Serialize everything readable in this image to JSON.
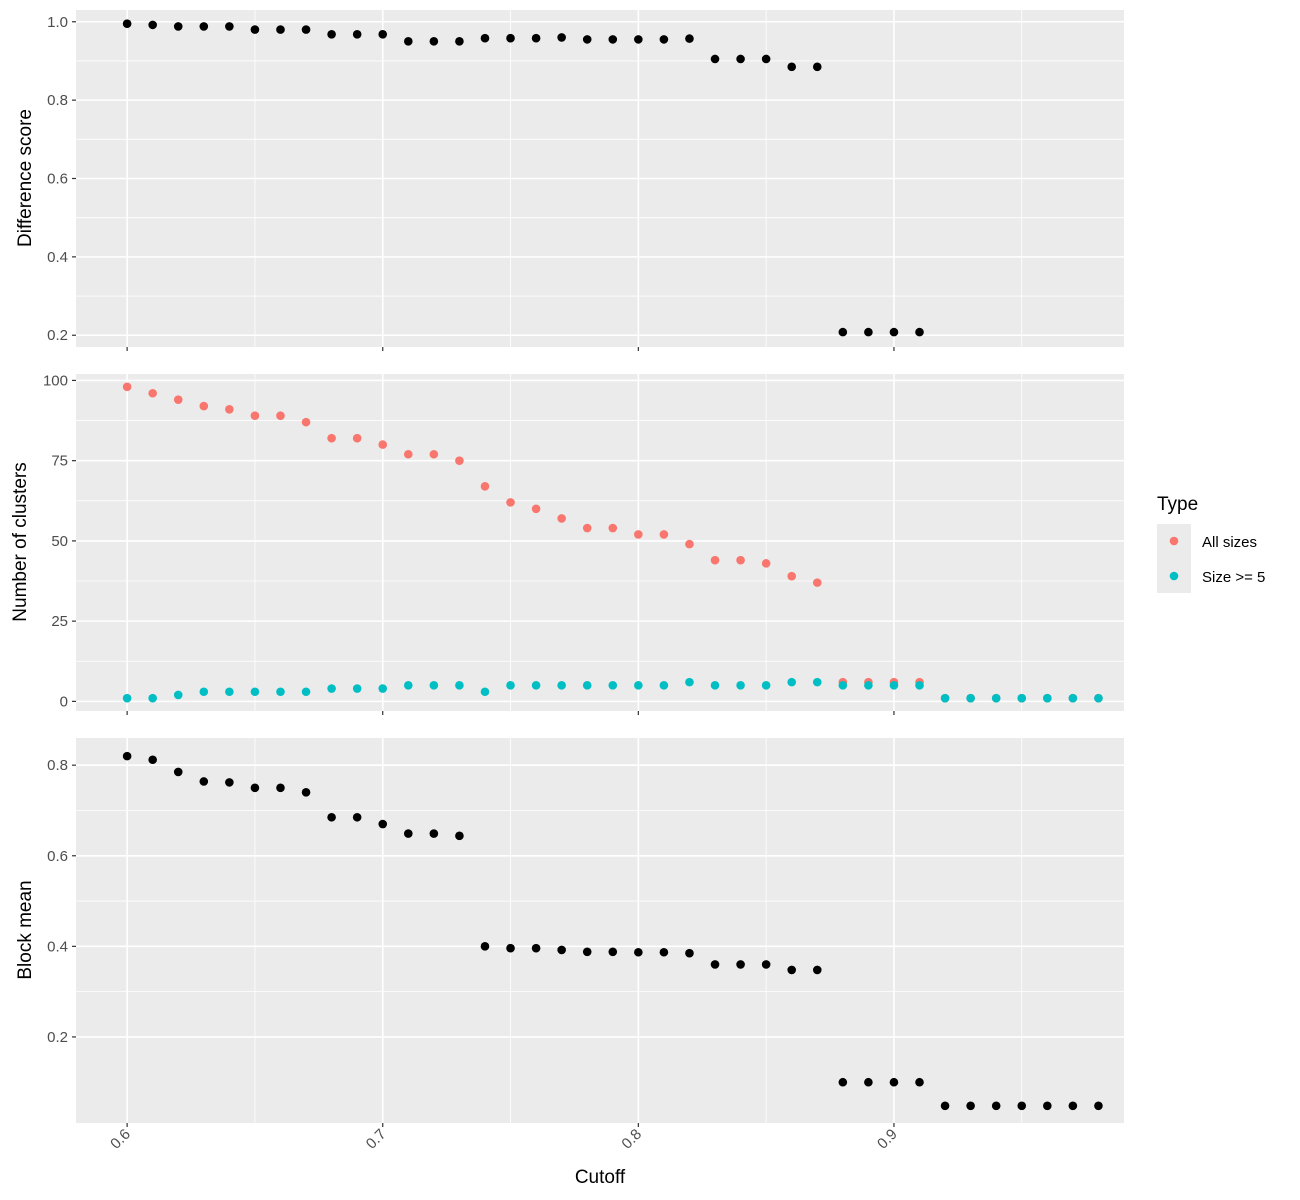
{
  "chart_data": [
    {
      "type": "scatter",
      "panel": "top",
      "ylabel": "Difference score",
      "xlim": [
        0.58,
        0.99
      ],
      "ylim": [
        0.17,
        1.03
      ],
      "y_ticks": [
        0.2,
        0.4,
        0.6,
        0.8,
        1.0
      ],
      "y_tick_labels": [
        "0.2",
        "0.4",
        "0.6",
        "0.8",
        "1.0"
      ],
      "grid": true,
      "series": [
        {
          "color": "#000000",
          "x": [
            0.6,
            0.61,
            0.62,
            0.63,
            0.64,
            0.65,
            0.66,
            0.67,
            0.68,
            0.69,
            0.7,
            0.71,
            0.72,
            0.73,
            0.74,
            0.75,
            0.76,
            0.77,
            0.78,
            0.79,
            0.8,
            0.81,
            0.82,
            0.83,
            0.84,
            0.85,
            0.86,
            0.87,
            0.88,
            0.89,
            0.9,
            0.91
          ],
          "y": [
            0.995,
            0.992,
            0.988,
            0.988,
            0.988,
            0.98,
            0.98,
            0.98,
            0.968,
            0.968,
            0.968,
            0.95,
            0.95,
            0.95,
            0.958,
            0.958,
            0.958,
            0.96,
            0.955,
            0.955,
            0.955,
            0.955,
            0.957,
            0.905,
            0.905,
            0.905,
            0.885,
            0.885,
            0.208,
            0.208,
            0.208,
            0.208
          ]
        }
      ]
    },
    {
      "type": "scatter",
      "panel": "middle",
      "ylabel": "Number of clusters",
      "xlim": [
        0.58,
        0.99
      ],
      "ylim": [
        -3,
        102
      ],
      "y_ticks": [
        0,
        25,
        50,
        75,
        100
      ],
      "y_tick_labels": [
        "0",
        "25",
        "50",
        "75",
        "100"
      ],
      "grid": true,
      "legend": {
        "title": "Type",
        "position": "right"
      },
      "series": [
        {
          "name": "All sizes",
          "color": "#F8766D",
          "x": [
            0.6,
            0.61,
            0.62,
            0.63,
            0.64,
            0.65,
            0.66,
            0.67,
            0.68,
            0.69,
            0.7,
            0.71,
            0.72,
            0.73,
            0.74,
            0.75,
            0.76,
            0.77,
            0.78,
            0.79,
            0.8,
            0.81,
            0.82,
            0.83,
            0.84,
            0.85,
            0.86,
            0.87,
            0.88,
            0.89,
            0.9,
            0.91,
            0.92,
            0.93,
            0.94,
            0.95,
            0.96,
            0.97,
            0.98
          ],
          "y": [
            98,
            96,
            94,
            92,
            91,
            89,
            89,
            87,
            82,
            82,
            80,
            77,
            77,
            75,
            67,
            62,
            60,
            57,
            54,
            54,
            52,
            52,
            49,
            44,
            44,
            43,
            39,
            37,
            6,
            6,
            6,
            6,
            1,
            1,
            1,
            1,
            1,
            1,
            1
          ]
        },
        {
          "name": "Size >= 5",
          "color": "#00BFC4",
          "x": [
            0.6,
            0.61,
            0.62,
            0.63,
            0.64,
            0.65,
            0.66,
            0.67,
            0.68,
            0.69,
            0.7,
            0.71,
            0.72,
            0.73,
            0.74,
            0.75,
            0.76,
            0.77,
            0.78,
            0.79,
            0.8,
            0.81,
            0.82,
            0.83,
            0.84,
            0.85,
            0.86,
            0.87,
            0.88,
            0.89,
            0.9,
            0.91,
            0.92,
            0.93,
            0.94,
            0.95,
            0.96,
            0.97,
            0.98
          ],
          "y": [
            1,
            1,
            2,
            3,
            3,
            3,
            3,
            3,
            4,
            4,
            4,
            5,
            5,
            5,
            3,
            5,
            5,
            5,
            5,
            5,
            5,
            5,
            6,
            5,
            5,
            5,
            6,
            6,
            5,
            5,
            5,
            5,
            1,
            1,
            1,
            1,
            1,
            1,
            1
          ]
        }
      ]
    },
    {
      "type": "scatter",
      "panel": "bottom",
      "ylabel": "Block mean",
      "xlabel": "Cutoff",
      "xlim": [
        0.58,
        0.99
      ],
      "ylim": [
        0.01,
        0.86
      ],
      "x_ticks": [
        0.6,
        0.7,
        0.8,
        0.9
      ],
      "x_tick_labels": [
        "0.6",
        "0.7",
        "0.8",
        "0.9"
      ],
      "y_ticks": [
        0.2,
        0.4,
        0.6,
        0.8
      ],
      "y_tick_labels": [
        "0.2",
        "0.4",
        "0.6",
        "0.8"
      ],
      "grid": true,
      "series": [
        {
          "color": "#000000",
          "x": [
            0.6,
            0.61,
            0.62,
            0.63,
            0.64,
            0.65,
            0.66,
            0.67,
            0.68,
            0.69,
            0.7,
            0.71,
            0.72,
            0.73,
            0.74,
            0.75,
            0.76,
            0.77,
            0.78,
            0.79,
            0.8,
            0.81,
            0.82,
            0.83,
            0.84,
            0.85,
            0.86,
            0.87,
            0.88,
            0.89,
            0.9,
            0.91,
            0.92,
            0.93,
            0.94,
            0.95,
            0.96,
            0.97,
            0.98
          ],
          "y": [
            0.82,
            0.812,
            0.785,
            0.764,
            0.762,
            0.75,
            0.75,
            0.74,
            0.685,
            0.685,
            0.67,
            0.649,
            0.649,
            0.644,
            0.4,
            0.396,
            0.396,
            0.392,
            0.388,
            0.388,
            0.387,
            0.387,
            0.385,
            0.36,
            0.36,
            0.36,
            0.348,
            0.348,
            0.1,
            0.1,
            0.1,
            0.1,
            0.048,
            0.048,
            0.048,
            0.048,
            0.048,
            0.048,
            0.048
          ]
        }
      ]
    }
  ]
}
